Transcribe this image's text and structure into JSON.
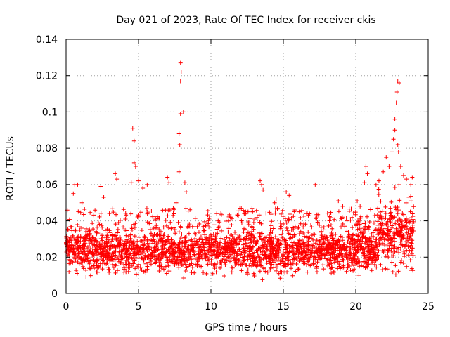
{
  "chart_data": {
    "type": "scatter",
    "title": "Day 021 of 2023, Rate Of TEC Index for receiver ckis",
    "xlabel": "GPS time / hours",
    "ylabel": "ROTI / TECUs",
    "xlim": [
      0,
      25
    ],
    "ylim": [
      0,
      0.14
    ],
    "x_ticks": [
      0,
      5,
      10,
      15,
      20,
      25
    ],
    "y_ticks": [
      0,
      0.02,
      0.04,
      0.06,
      0.08,
      0.1,
      0.12,
      0.14
    ],
    "x_tick_labels": [
      "0",
      "5",
      "10",
      "15",
      "20",
      "25"
    ],
    "y_tick_labels": [
      "0",
      "0.02",
      "0.04",
      "0.06",
      "0.08",
      "0.1",
      "0.12",
      "0.14"
    ],
    "grid": true,
    "marker": "+",
    "color": "#ff0000",
    "series": [
      {
        "name": "ROTI",
        "x_range": [
          0,
          24
        ],
        "typical_range": [
          0.005,
          0.035
        ],
        "outliers": [
          {
            "x": 0.6,
            "y": 0.06
          },
          {
            "x": 0.8,
            "y": 0.06
          },
          {
            "x": 0.5,
            "y": 0.055
          },
          {
            "x": 1.1,
            "y": 0.05
          },
          {
            "x": 2.4,
            "y": 0.059
          },
          {
            "x": 2.6,
            "y": 0.053
          },
          {
            "x": 3.4,
            "y": 0.066
          },
          {
            "x": 3.5,
            "y": 0.063
          },
          {
            "x": 4.5,
            "y": 0.061
          },
          {
            "x": 4.6,
            "y": 0.091
          },
          {
            "x": 4.7,
            "y": 0.084
          },
          {
            "x": 4.7,
            "y": 0.072
          },
          {
            "x": 4.8,
            "y": 0.07
          },
          {
            "x": 5.0,
            "y": 0.062
          },
          {
            "x": 5.3,
            "y": 0.058
          },
          {
            "x": 5.6,
            "y": 0.06
          },
          {
            "x": 7.0,
            "y": 0.064
          },
          {
            "x": 7.1,
            "y": 0.061
          },
          {
            "x": 7.4,
            "y": 0.047
          },
          {
            "x": 7.6,
            "y": 0.05
          },
          {
            "x": 7.8,
            "y": 0.088
          },
          {
            "x": 7.85,
            "y": 0.082
          },
          {
            "x": 7.9,
            "y": 0.127
          },
          {
            "x": 7.95,
            "y": 0.122
          },
          {
            "x": 7.9,
            "y": 0.117
          },
          {
            "x": 7.9,
            "y": 0.099
          },
          {
            "x": 8.1,
            "y": 0.1
          },
          {
            "x": 7.8,
            "y": 0.067
          },
          {
            "x": 8.2,
            "y": 0.061
          },
          {
            "x": 8.3,
            "y": 0.056
          },
          {
            "x": 10.4,
            "y": 0.044
          },
          {
            "x": 10.5,
            "y": 0.04
          },
          {
            "x": 12.0,
            "y": 0.047
          },
          {
            "x": 12.4,
            "y": 0.045
          },
          {
            "x": 13.4,
            "y": 0.062
          },
          {
            "x": 13.5,
            "y": 0.06
          },
          {
            "x": 13.6,
            "y": 0.057
          },
          {
            "x": 14.4,
            "y": 0.05
          },
          {
            "x": 14.5,
            "y": 0.052
          },
          {
            "x": 15.2,
            "y": 0.056
          },
          {
            "x": 15.4,
            "y": 0.054
          },
          {
            "x": 15.8,
            "y": 0.046
          },
          {
            "x": 16.1,
            "y": 0.045
          },
          {
            "x": 16.6,
            "y": 0.044
          },
          {
            "x": 17.2,
            "y": 0.06
          },
          {
            "x": 18.8,
            "y": 0.051
          },
          {
            "x": 19.1,
            "y": 0.048
          },
          {
            "x": 20.1,
            "y": 0.051
          },
          {
            "x": 20.3,
            "y": 0.048
          },
          {
            "x": 20.7,
            "y": 0.07
          },
          {
            "x": 20.8,
            "y": 0.066
          },
          {
            "x": 20.6,
            "y": 0.061
          },
          {
            "x": 21.4,
            "y": 0.06
          },
          {
            "x": 21.6,
            "y": 0.062
          },
          {
            "x": 21.9,
            "y": 0.067
          },
          {
            "x": 22.1,
            "y": 0.075
          },
          {
            "x": 22.3,
            "y": 0.07
          },
          {
            "x": 22.5,
            "y": 0.078
          },
          {
            "x": 22.6,
            "y": 0.085
          },
          {
            "x": 22.7,
            "y": 0.09
          },
          {
            "x": 22.7,
            "y": 0.096
          },
          {
            "x": 22.8,
            "y": 0.105
          },
          {
            "x": 22.85,
            "y": 0.111
          },
          {
            "x": 22.9,
            "y": 0.117
          },
          {
            "x": 23.0,
            "y": 0.116
          },
          {
            "x": 22.9,
            "y": 0.082
          },
          {
            "x": 22.95,
            "y": 0.078
          },
          {
            "x": 23.1,
            "y": 0.07
          },
          {
            "x": 23.3,
            "y": 0.065
          },
          {
            "x": 23.5,
            "y": 0.063
          },
          {
            "x": 23.9,
            "y": 0.064
          },
          {
            "x": 23.8,
            "y": 0.06
          }
        ]
      }
    ]
  }
}
